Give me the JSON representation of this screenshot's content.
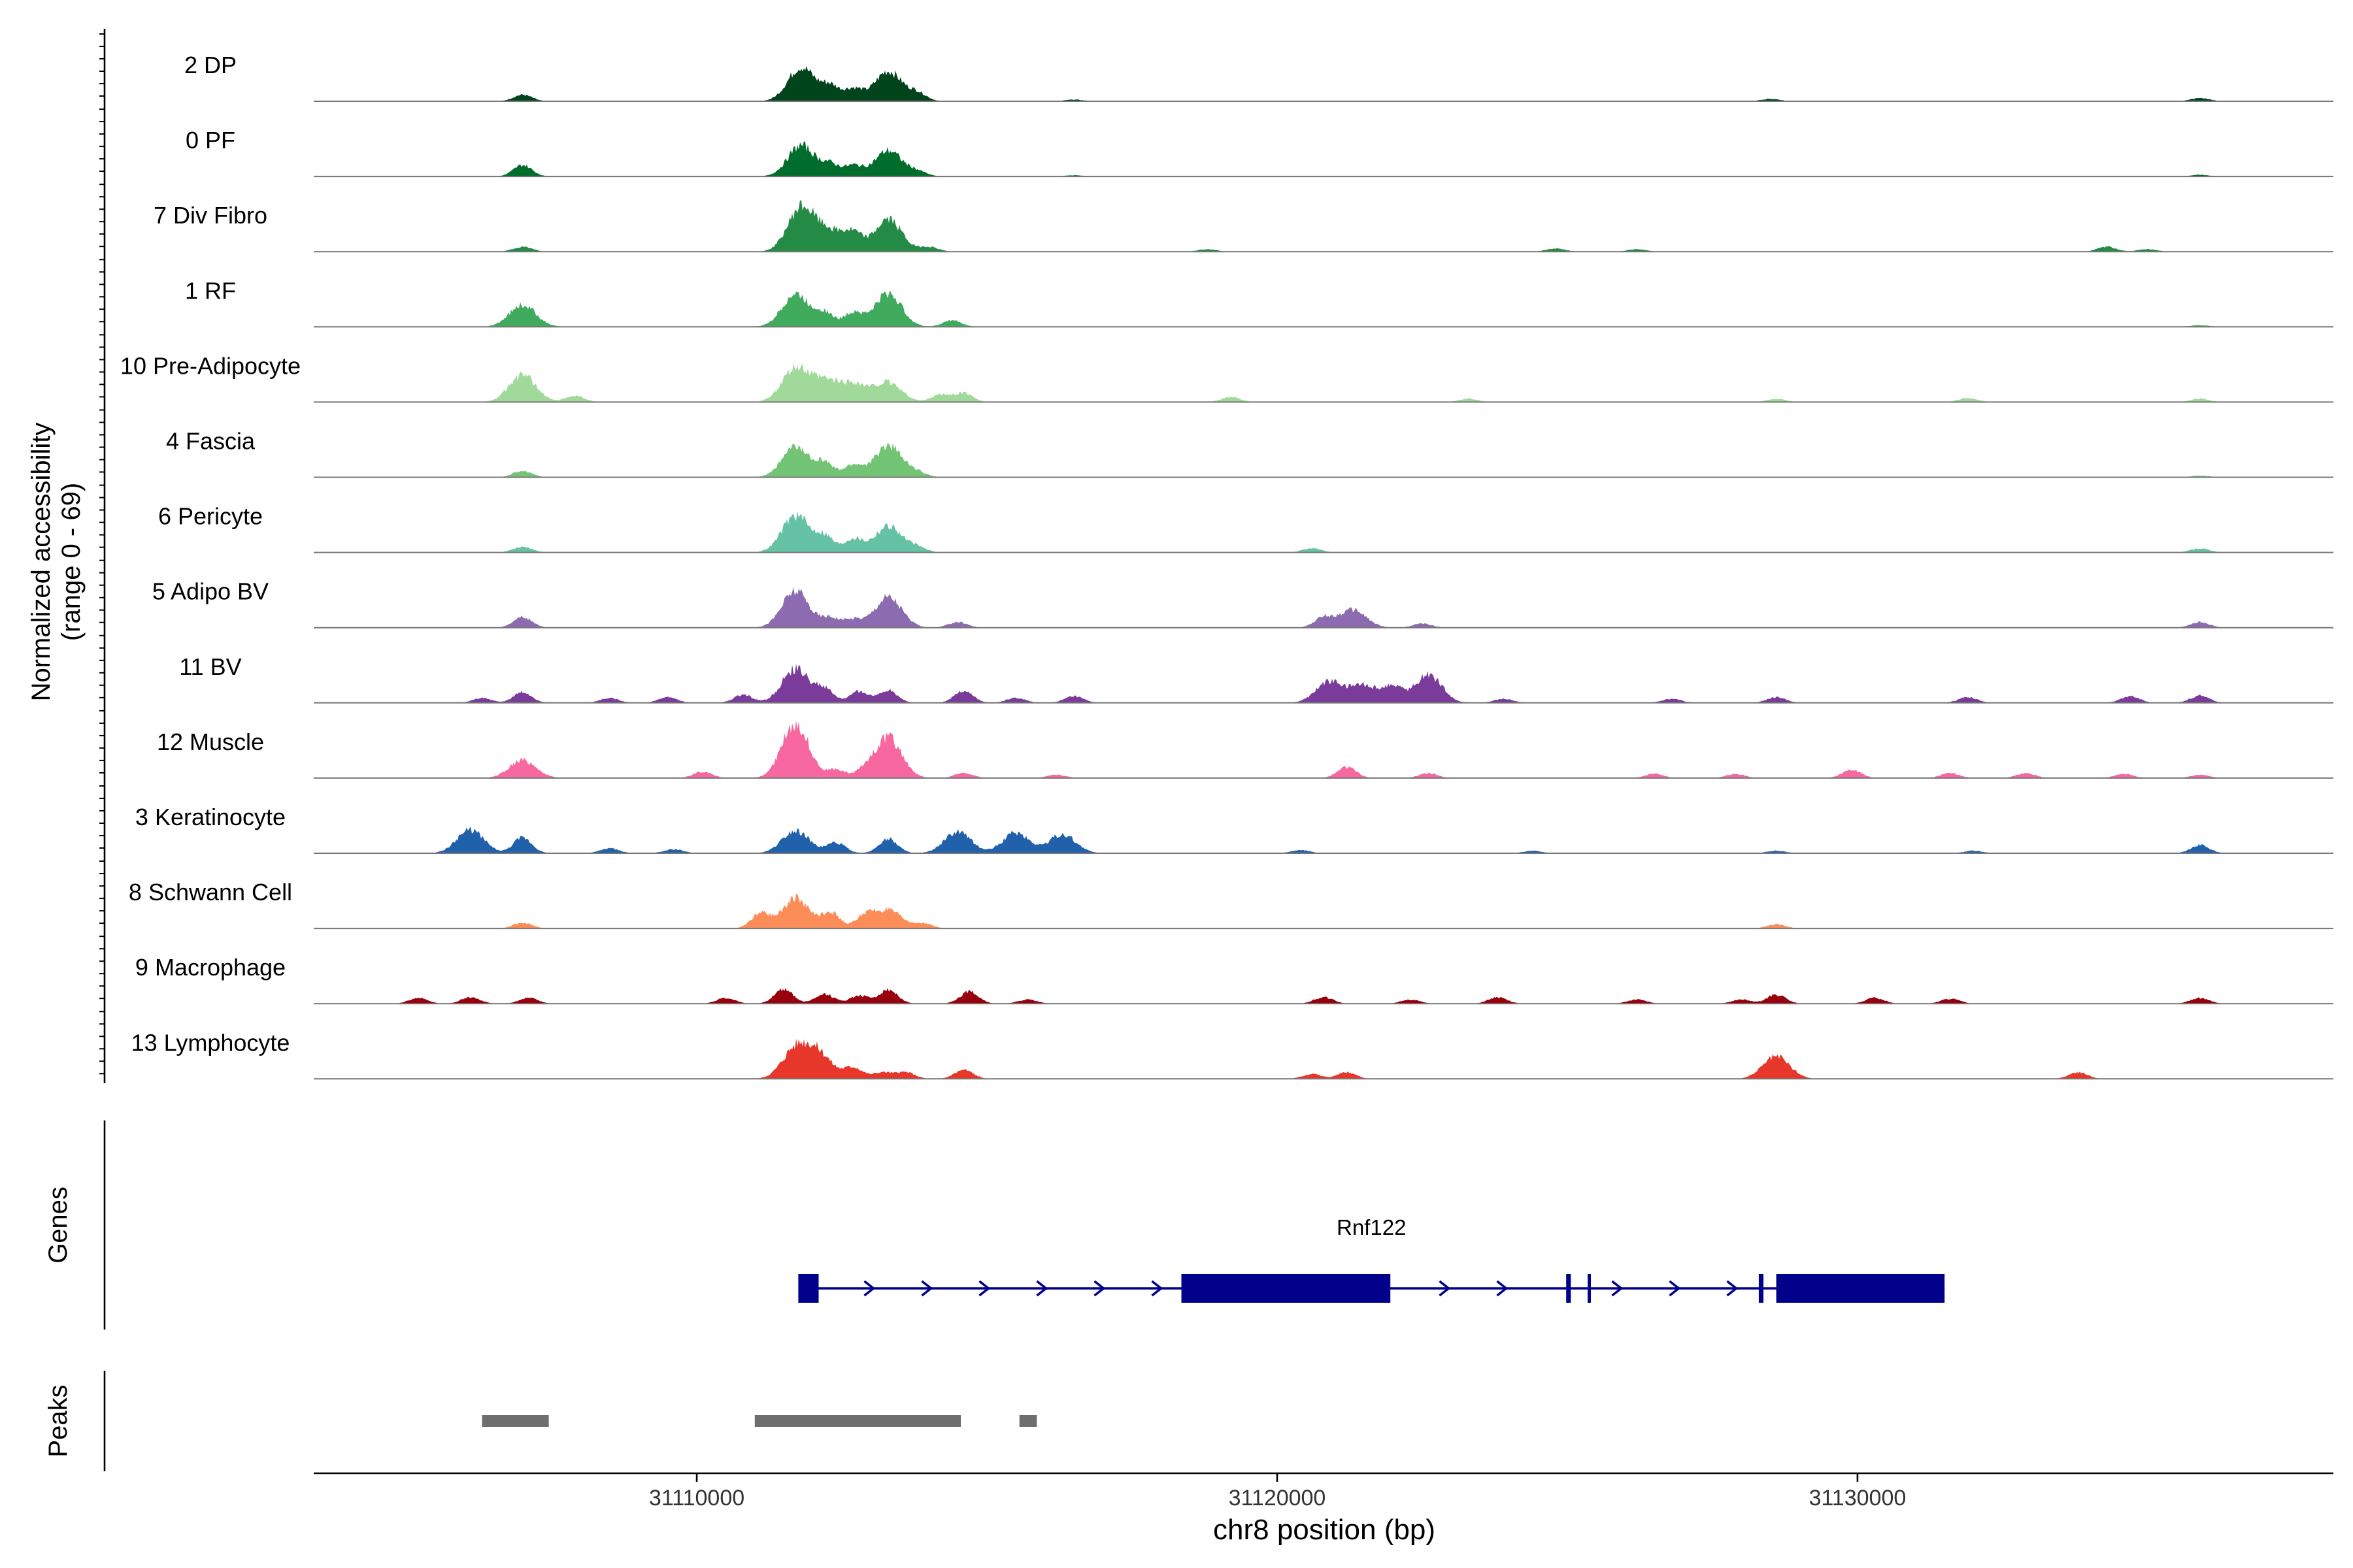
{
  "chart_data": {
    "type": "area",
    "title": "",
    "chromosome": "chr8",
    "xlabel": "chr8 position (bp)",
    "ylabel": "Normalized accessibility",
    "ylabel_range": "(range 0 - 69)",
    "xlim": [
      31103400,
      31138200
    ],
    "ylim": [
      0,
      69
    ],
    "x_ticks": [
      {
        "value": 31110000,
        "label": "31110000"
      },
      {
        "value": 31120000,
        "label": "31120000"
      },
      {
        "value": 31130000,
        "label": "31130000"
      }
    ],
    "tracks": [
      {
        "name": "2 DP",
        "color": "#00441b",
        "peaks": [
          [
            31107000,
            8
          ],
          [
            31111800,
            42
          ],
          [
            31112300,
            18
          ],
          [
            31112700,
            15
          ],
          [
            31113300,
            37
          ],
          [
            31113800,
            10
          ],
          [
            31116500,
            2
          ],
          [
            31128500,
            3
          ],
          [
            31135900,
            4
          ]
        ]
      },
      {
        "name": "0 PF",
        "color": "#006d2c",
        "peaks": [
          [
            31107000,
            14
          ],
          [
            31111800,
            38
          ],
          [
            31112300,
            14
          ],
          [
            31112700,
            13
          ],
          [
            31113300,
            32
          ],
          [
            31113800,
            6
          ],
          [
            31116500,
            1.5
          ],
          [
            31135900,
            2
          ]
        ]
      },
      {
        "name": "7 Div Fibro",
        "color": "#238b45",
        "peaks": [
          [
            31107000,
            6
          ],
          [
            31111800,
            54
          ],
          [
            31112300,
            24
          ],
          [
            31112700,
            20
          ],
          [
            31113300,
            40
          ],
          [
            31114000,
            6
          ],
          [
            31118800,
            3
          ],
          [
            31124800,
            4
          ],
          [
            31126200,
            3
          ],
          [
            31134300,
            6
          ],
          [
            31135000,
            3
          ]
        ]
      },
      {
        "name": "1 RF",
        "color": "#41ab5d",
        "peaks": [
          [
            31107000,
            27
          ],
          [
            31111700,
            40
          ],
          [
            31112200,
            17
          ],
          [
            31112700,
            18
          ],
          [
            31113300,
            41
          ],
          [
            31114400,
            8
          ],
          [
            31135900,
            2
          ]
        ]
      },
      {
        "name": "10 Pre-Adipocyte",
        "color": "#a1d99b",
        "peaks": [
          [
            31107000,
            33
          ],
          [
            31107900,
            8
          ],
          [
            31111700,
            40
          ],
          [
            31112200,
            24
          ],
          [
            31112700,
            22
          ],
          [
            31113300,
            24
          ],
          [
            31114200,
            9
          ],
          [
            31114600,
            11
          ],
          [
            31119200,
            6
          ],
          [
            31123300,
            4
          ],
          [
            31128600,
            4
          ],
          [
            31131900,
            5
          ],
          [
            31135900,
            4
          ]
        ]
      },
      {
        "name": "4 Fascia",
        "color": "#74c476",
        "peaks": [
          [
            31107000,
            8
          ],
          [
            31111700,
            37
          ],
          [
            31112200,
            17
          ],
          [
            31112700,
            15
          ],
          [
            31113300,
            39
          ],
          [
            31113800,
            6
          ],
          [
            31135900,
            2
          ]
        ]
      },
      {
        "name": "6 Pericyte",
        "color": "#66c2a4",
        "peaks": [
          [
            31107000,
            7
          ],
          [
            31111700,
            46
          ],
          [
            31112200,
            20
          ],
          [
            31112700,
            17
          ],
          [
            31113300,
            33
          ],
          [
            31113800,
            6
          ],
          [
            31120600,
            5
          ],
          [
            31135900,
            5
          ]
        ]
      },
      {
        "name": "5 Adipo BV",
        "color": "#8c6bb1",
        "peaks": [
          [
            31107000,
            13
          ],
          [
            31111700,
            45
          ],
          [
            31112300,
            12
          ],
          [
            31112700,
            10
          ],
          [
            31113300,
            38
          ],
          [
            31114500,
            7
          ],
          [
            31120800,
            12
          ],
          [
            31121300,
            22
          ],
          [
            31122500,
            5
          ],
          [
            31135900,
            7
          ]
        ]
      },
      {
        "name": "11 BV",
        "color": "#7a3b9a",
        "peaks": [
          [
            31106300,
            6
          ],
          [
            31107000,
            13
          ],
          [
            31108500,
            6
          ],
          [
            31109500,
            7
          ],
          [
            31110800,
            10
          ],
          [
            31111700,
            42
          ],
          [
            31112200,
            16
          ],
          [
            31112800,
            14
          ],
          [
            31113300,
            16
          ],
          [
            31114600,
            15
          ],
          [
            31115500,
            6
          ],
          [
            31116500,
            8
          ],
          [
            31120900,
            26
          ],
          [
            31121500,
            22
          ],
          [
            31122000,
            20
          ],
          [
            31122600,
            35
          ],
          [
            31123900,
            5
          ],
          [
            31126800,
            5
          ],
          [
            31128600,
            7
          ],
          [
            31131900,
            7
          ],
          [
            31134700,
            8
          ],
          [
            31135900,
            9
          ]
        ]
      },
      {
        "name": "12 Muscle",
        "color": "#f768a1",
        "peaks": [
          [
            31107000,
            22
          ],
          [
            31110100,
            8
          ],
          [
            31111700,
            68
          ],
          [
            31112400,
            10
          ],
          [
            31112900,
            8
          ],
          [
            31113300,
            50
          ],
          [
            31114600,
            6
          ],
          [
            31116200,
            4
          ],
          [
            31121200,
            14
          ],
          [
            31122600,
            6
          ],
          [
            31126500,
            5
          ],
          [
            31127900,
            5
          ],
          [
            31129900,
            10
          ],
          [
            31131600,
            6
          ],
          [
            31132900,
            6
          ],
          [
            31134600,
            5
          ],
          [
            31135900,
            4
          ]
        ]
      },
      {
        "name": "3 Keratinocyte",
        "color": "#2161ac",
        "peaks": [
          [
            31106100,
            29
          ],
          [
            31107000,
            19
          ],
          [
            31108500,
            6
          ],
          [
            31109600,
            5
          ],
          [
            31111700,
            28
          ],
          [
            31112400,
            13
          ],
          [
            31113300,
            18
          ],
          [
            31114500,
            26
          ],
          [
            31115500,
            25
          ],
          [
            31116300,
            23
          ],
          [
            31120400,
            4
          ],
          [
            31124400,
            3
          ],
          [
            31128600,
            3
          ],
          [
            31132000,
            3
          ],
          [
            31135900,
            10
          ]
        ]
      },
      {
        "name": "8 Schwann Cell",
        "color": "#fc8d59",
        "peaks": [
          [
            31107000,
            7
          ],
          [
            31111100,
            19
          ],
          [
            31111700,
            37
          ],
          [
            31112300,
            20
          ],
          [
            31112900,
            15
          ],
          [
            31113300,
            22
          ],
          [
            31113900,
            6
          ],
          [
            31128600,
            5
          ]
        ]
      },
      {
        "name": "9 Macrophage",
        "color": "#99000d",
        "peaks": [
          [
            31105200,
            7
          ],
          [
            31106100,
            8
          ],
          [
            31107100,
            7
          ],
          [
            31110500,
            7
          ],
          [
            31111500,
            18
          ],
          [
            31112200,
            12
          ],
          [
            31112800,
            10
          ],
          [
            31113300,
            17
          ],
          [
            31114700,
            15
          ],
          [
            31115700,
            5
          ],
          [
            31120800,
            8
          ],
          [
            31122300,
            5
          ],
          [
            31123800,
            8
          ],
          [
            31126200,
            5
          ],
          [
            31128000,
            5
          ],
          [
            31128600,
            11
          ],
          [
            31130300,
            7
          ],
          [
            31131600,
            6
          ],
          [
            31135900,
            7
          ]
        ]
      },
      {
        "name": "13 Lymphocyte",
        "color": "#e7372a",
        "peaks": [
          [
            31111700,
            36
          ],
          [
            31112100,
            30
          ],
          [
            31112700,
            14
          ],
          [
            31113200,
            8
          ],
          [
            31113600,
            8
          ],
          [
            31114600,
            11
          ],
          [
            31120600,
            6
          ],
          [
            31121200,
            8
          ],
          [
            31128600,
            27
          ],
          [
            31133800,
            8
          ]
        ]
      }
    ],
    "genes": [
      {
        "label": "Rnf122",
        "strand": "+",
        "color": "#00008b",
        "start": 31111750,
        "end": 31131500,
        "exons": [
          [
            31111750,
            31112100
          ],
          [
            31118350,
            31121950
          ],
          [
            31124980,
            31125060
          ],
          [
            31125350,
            31125400
          ],
          [
            31128300,
            31128380
          ],
          [
            31128600,
            31131500
          ]
        ]
      }
    ],
    "peak_regions": [
      {
        "start": 31106300,
        "end": 31107450
      },
      {
        "start": 31111000,
        "end": 31114550
      },
      {
        "start": 31115560,
        "end": 31115860
      }
    ],
    "panel_labels": {
      "genes": "Genes",
      "peaks": "Peaks"
    }
  }
}
